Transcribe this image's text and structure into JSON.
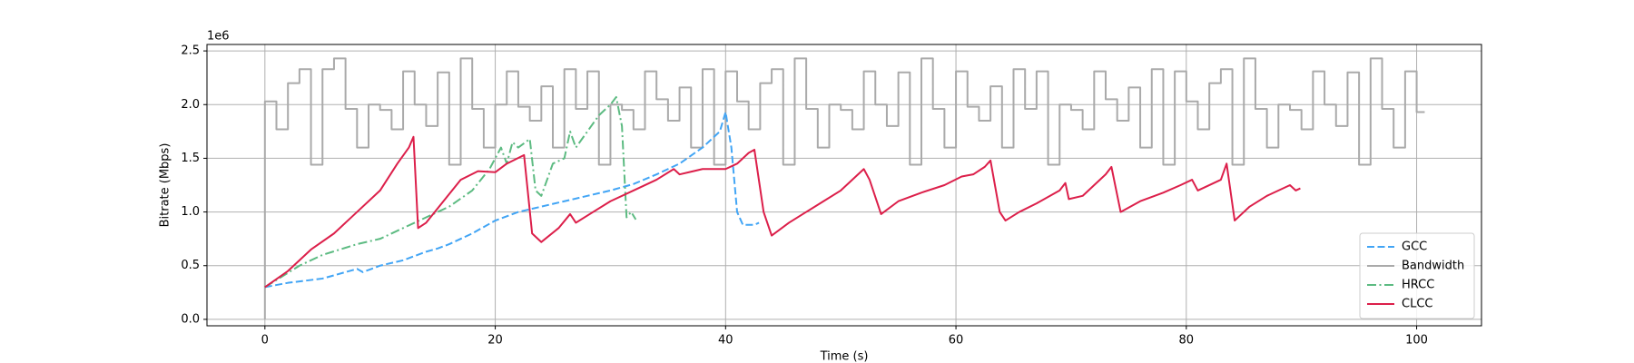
{
  "chart_data": {
    "type": "line",
    "x_label": "Time (s)",
    "y_label": "Bitrate (Mbps)",
    "y_offset_label": "1e6",
    "xlim": [
      -5.03,
      105.63
    ],
    "ylim": [
      -0.06,
      2.56
    ],
    "xticks": [
      0,
      20,
      40,
      60,
      80,
      100
    ],
    "yticks": [
      {
        "value": 0,
        "label": "0.0"
      },
      0.5,
      {
        "value": 1,
        "label": "1.0"
      },
      1.5,
      {
        "value": 2,
        "label": "2.0"
      },
      2.5
    ],
    "grid": true,
    "legend_position": "lower right",
    "series": [
      {
        "name": "GCC",
        "color": "#42a5f5",
        "linestyle": "dashed",
        "x": [
          0,
          2,
          5,
          8,
          8.5,
          10,
          12,
          14,
          15,
          16,
          18,
          20,
          22,
          24,
          26,
          28,
          30,
          32,
          34,
          36,
          38,
          39.5,
          40,
          40.5,
          41,
          41.5,
          42.5,
          42.9
        ],
        "values": [
          0.3,
          0.34,
          0.38,
          0.47,
          0.44,
          0.5,
          0.55,
          0.63,
          0.66,
          0.7,
          0.8,
          0.92,
          1.0,
          1.05,
          1.1,
          1.15,
          1.2,
          1.26,
          1.35,
          1.45,
          1.6,
          1.75,
          1.93,
          1.6,
          1.0,
          0.88,
          0.88,
          0.9
        ]
      },
      {
        "name": "Bandwidth",
        "color": "#aaaaaa",
        "linestyle": "solid",
        "drawstyle": "steps-post",
        "x": [
          0,
          0,
          1,
          2,
          3,
          4,
          5,
          6,
          7,
          8,
          9,
          10,
          11,
          12,
          13,
          14,
          15,
          16,
          17,
          18,
          19,
          20,
          21,
          22,
          23,
          24,
          25,
          26,
          27,
          28,
          29,
          30,
          31,
          32,
          33,
          34,
          35,
          36,
          37,
          38,
          39,
          40,
          41,
          42,
          43,
          44,
          45,
          46,
          47,
          48,
          49,
          50,
          51,
          52,
          53,
          54,
          55,
          56,
          57,
          58,
          59,
          60,
          61,
          62,
          63,
          64,
          65,
          66,
          67,
          68,
          69,
          70,
          71,
          72,
          73,
          74,
          75,
          76,
          77,
          78,
          79,
          80,
          81,
          82,
          83,
          84,
          85,
          86,
          87,
          88,
          89,
          90,
          91,
          92,
          93,
          94,
          95,
          96,
          97,
          98,
          99,
          100,
          100.7
        ],
        "values": [
          0,
          2.03,
          1.77,
          2.2,
          2.33,
          1.44,
          2.33,
          2.43,
          1.96,
          1.6,
          2.0,
          1.95,
          1.77,
          2.31,
          2.0,
          1.8,
          2.3,
          1.44,
          2.43,
          1.96,
          1.6,
          2.0,
          2.31,
          1.98,
          1.85,
          2.17,
          1.6,
          2.33,
          1.96,
          2.31,
          1.44,
          2.0,
          1.95,
          1.77,
          2.31,
          2.05,
          1.85,
          2.16,
          1.6,
          2.33,
          1.44,
          2.31,
          2.03,
          1.77,
          2.2,
          2.33,
          1.44,
          2.43,
          1.96,
          1.6,
          2.0,
          1.95,
          1.77,
          2.31,
          2.0,
          1.8,
          2.3,
          1.44,
          2.43,
          1.96,
          1.6,
          2.31,
          1.98,
          1.85,
          2.17,
          1.6,
          2.33,
          1.96,
          2.31,
          1.44,
          2.0,
          1.95,
          1.77,
          2.31,
          2.05,
          1.85,
          2.16,
          1.6,
          2.33,
          1.44,
          2.31,
          2.03,
          1.77,
          2.2,
          2.33,
          1.44,
          2.43,
          1.96,
          1.6,
          2.0,
          1.95,
          1.77,
          2.31,
          2.0,
          1.8,
          2.3,
          1.44,
          2.43,
          1.96,
          1.6,
          2.31,
          1.93,
          1.93
        ]
      },
      {
        "name": "HRCC",
        "color": "#5dbb82",
        "linestyle": "dashdot",
        "x": [
          0,
          3,
          5,
          8,
          10,
          12,
          14,
          16,
          18,
          19.5,
          20.5,
          21,
          21.5,
          22,
          23,
          23.5,
          24,
          25,
          26,
          26.5,
          27,
          28,
          29,
          30,
          30.5,
          31,
          31.4,
          31.8,
          32.2
        ],
        "values": [
          0.3,
          0.5,
          0.6,
          0.7,
          0.75,
          0.85,
          0.95,
          1.05,
          1.2,
          1.4,
          1.6,
          1.45,
          1.65,
          1.6,
          1.68,
          1.2,
          1.15,
          1.45,
          1.5,
          1.75,
          1.6,
          1.75,
          1.9,
          2.0,
          2.07,
          1.8,
          0.95,
          1.0,
          0.93
        ]
      },
      {
        "name": "CLCC",
        "color": "#dc1f4a",
        "linestyle": "solid",
        "x": [
          0,
          2,
          4,
          6,
          8,
          10,
          11.5,
          12.5,
          12.9,
          13.3,
          14,
          15.5,
          17,
          18.5,
          20,
          21,
          22.5,
          23.2,
          24,
          25.5,
          26.5,
          27,
          28.5,
          30,
          32,
          34,
          35.5,
          36,
          38,
          40,
          41,
          42,
          42.5,
          43.3,
          44,
          45.5,
          47,
          48.5,
          50,
          52,
          52.5,
          53.5,
          55,
          57,
          59,
          60.5,
          61.5,
          62.5,
          63,
          63.8,
          64.3,
          65.5,
          67,
          69,
          69.5,
          69.8,
          71,
          73,
          73.5,
          74.3,
          76,
          78,
          79.5,
          80.5,
          81,
          83,
          83.5,
          84.2,
          85.5,
          87,
          89,
          89.5,
          89.9
        ],
        "values": [
          0.3,
          0.45,
          0.65,
          0.8,
          1.0,
          1.2,
          1.45,
          1.6,
          1.7,
          0.85,
          0.9,
          1.1,
          1.3,
          1.38,
          1.37,
          1.45,
          1.53,
          0.8,
          0.72,
          0.85,
          0.98,
          0.9,
          1.0,
          1.1,
          1.2,
          1.3,
          1.4,
          1.35,
          1.4,
          1.4,
          1.45,
          1.55,
          1.58,
          1.0,
          0.78,
          0.9,
          1.0,
          1.1,
          1.2,
          1.4,
          1.3,
          0.98,
          1.1,
          1.18,
          1.25,
          1.33,
          1.35,
          1.42,
          1.48,
          1.0,
          0.92,
          1.0,
          1.08,
          1.2,
          1.27,
          1.12,
          1.15,
          1.35,
          1.42,
          1.0,
          1.1,
          1.18,
          1.25,
          1.3,
          1.2,
          1.3,
          1.45,
          0.92,
          1.05,
          1.15,
          1.25,
          1.2,
          1.22
        ]
      }
    ]
  }
}
